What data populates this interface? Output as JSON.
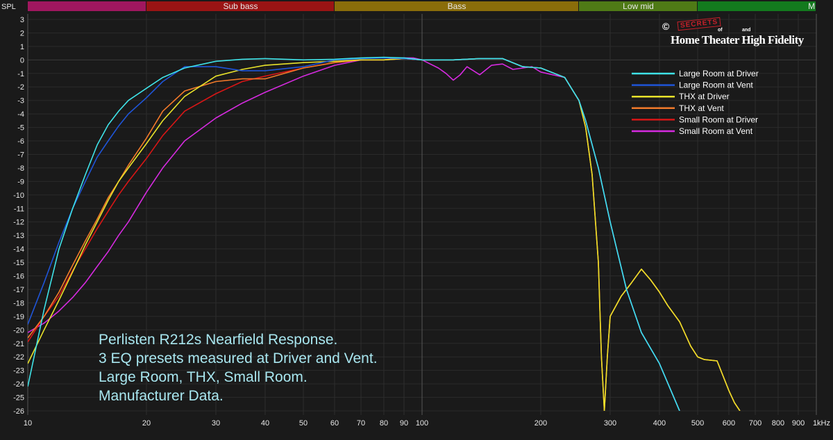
{
  "chart_data": {
    "type": "line",
    "ylabel": "SPL",
    "xscale": "log",
    "xlim": [
      10,
      1000
    ],
    "ylim": [
      -26,
      3
    ],
    "y_ticks": [
      3,
      2,
      1,
      0,
      -1,
      -2,
      -3,
      -4,
      -5,
      -6,
      -7,
      -8,
      -9,
      -10,
      -11,
      -12,
      -13,
      -14,
      -15,
      -16,
      -17,
      -18,
      -19,
      -20,
      -21,
      -22,
      -23,
      -24,
      -25,
      -26
    ],
    "x_ticks": [
      {
        "value": 10,
        "label": "10"
      },
      {
        "value": 20,
        "label": "20"
      },
      {
        "value": 30,
        "label": "30"
      },
      {
        "value": 40,
        "label": "40"
      },
      {
        "value": 50,
        "label": "50"
      },
      {
        "value": 60,
        "label": "60"
      },
      {
        "value": 70,
        "label": "70"
      },
      {
        "value": 80,
        "label": "80"
      },
      {
        "value": 90,
        "label": "90"
      },
      {
        "value": 100,
        "label": "100"
      },
      {
        "value": 200,
        "label": "200"
      },
      {
        "value": 300,
        "label": "300"
      },
      {
        "value": 400,
        "label": "400"
      },
      {
        "value": 500,
        "label": "500"
      },
      {
        "value": 600,
        "label": "600"
      },
      {
        "value": 700,
        "label": "700"
      },
      {
        "value": 800,
        "label": "800"
      },
      {
        "value": 900,
        "label": "900"
      },
      {
        "value": 1000,
        "label": "1kHz"
      }
    ],
    "bands": [
      {
        "label": "",
        "from": 10,
        "to": 20,
        "color": "#a0175f"
      },
      {
        "label": "Sub bass",
        "from": 20,
        "to": 60,
        "color": "#9a1414"
      },
      {
        "label": "Bass",
        "from": 60,
        "to": 250,
        "color": "#8a6d0a"
      },
      {
        "label": "Low mid",
        "from": 250,
        "to": 500,
        "color": "#4f7a16"
      },
      {
        "label": "M",
        "from": 500,
        "to": 1000,
        "color": "#137a1e"
      }
    ],
    "legend_position": "top-right",
    "grid": true,
    "series": [
      {
        "name": "Large Room at Driver",
        "color": "#3fe3e8",
        "x": [
          10,
          11,
          12,
          13,
          14,
          15,
          16,
          17,
          18,
          20,
          22,
          25,
          30,
          35,
          40,
          50,
          60,
          70,
          80,
          90,
          100,
          120,
          140,
          160,
          180,
          200,
          230,
          250,
          260,
          280,
          300,
          330,
          360,
          400,
          450
        ],
        "y": [
          -24.2,
          -18.5,
          -14,
          -11,
          -8.5,
          -6.3,
          -4.8,
          -3.8,
          -3,
          -2.1,
          -1.3,
          -0.6,
          -0.1,
          0.05,
          0.1,
          0,
          0.05,
          0.15,
          0.2,
          0.15,
          0,
          0,
          0.1,
          0.1,
          -0.5,
          -0.6,
          -1.3,
          -3,
          -4.5,
          -8,
          -12,
          -17,
          -20.2,
          -22.5,
          -26
        ]
      },
      {
        "name": "Large Room at Vent",
        "color": "#1f55d8",
        "x": [
          10,
          11,
          12,
          13,
          14,
          15,
          16,
          17,
          18,
          20,
          22,
          25,
          30,
          35,
          40,
          50,
          60,
          70,
          80,
          90,
          100,
          120,
          140,
          160,
          180,
          200,
          230,
          250,
          260,
          280,
          300,
          330,
          360,
          400,
          450
        ],
        "y": [
          -19.6,
          -16.5,
          -13.5,
          -11,
          -9,
          -7.2,
          -6,
          -4.9,
          -4,
          -2.8,
          -1.6,
          -0.5,
          -0.5,
          -0.8,
          -0.8,
          -0.5,
          0,
          0.1,
          0.15,
          0.1,
          0,
          0,
          0.1,
          0.1,
          -0.5,
          -0.6,
          -1.3,
          -3,
          -4.5,
          -8,
          -12,
          -17,
          -20.2,
          -22.5,
          -26
        ]
      },
      {
        "name": "THX at Driver",
        "color": "#e8e22a",
        "x": [
          10,
          11,
          12,
          13,
          14,
          15,
          16,
          17,
          18,
          20,
          22,
          25,
          30,
          35,
          40,
          50,
          60,
          70,
          80,
          90,
          100,
          120,
          140,
          160,
          180,
          200,
          230,
          250,
          260,
          270,
          280,
          285,
          290,
          295,
          300,
          320,
          340,
          360,
          380,
          400,
          420,
          450,
          480,
          500,
          520,
          560,
          600,
          620,
          640
        ],
        "y": [
          -22.5,
          -20,
          -17.8,
          -15.7,
          -13.7,
          -12,
          -10.4,
          -9,
          -8,
          -6.2,
          -4.5,
          -2.7,
          -1.2,
          -0.7,
          -0.4,
          -0.2,
          -0.1,
          0,
          0,
          0.1,
          0,
          0,
          0.1,
          0.1,
          -0.5,
          -0.6,
          -1.3,
          -3,
          -5,
          -8.5,
          -15,
          -22,
          -26,
          -22,
          -19,
          -17.5,
          -16.5,
          -15.5,
          -16.3,
          -17.2,
          -18.2,
          -19.4,
          -21.2,
          -22,
          -22.2,
          -22.3,
          -24.5,
          -25.4,
          -26
        ]
      },
      {
        "name": "THX at Vent",
        "color": "#f27a2a",
        "x": [
          10,
          11,
          12,
          13,
          14,
          15,
          16,
          17,
          18,
          20,
          22,
          25,
          30,
          35,
          40,
          50,
          60,
          70,
          80,
          90,
          100,
          120,
          140,
          160,
          180,
          200,
          230,
          250,
          260,
          270,
          280,
          285,
          290,
          295,
          300,
          320,
          340,
          360,
          380,
          400,
          420,
          450,
          480,
          500,
          520,
          560,
          600,
          620,
          640
        ],
        "y": [
          -20.6,
          -19,
          -17.2,
          -15.2,
          -13.4,
          -11.8,
          -10.2,
          -9,
          -7.8,
          -5.8,
          -3.8,
          -2.3,
          -1.6,
          -1.4,
          -1.4,
          -0.6,
          -0.2,
          0,
          0,
          0.1,
          0,
          0,
          0.1,
          0.1,
          -0.5,
          -0.6,
          -1.3,
          -3,
          -5,
          -8.5,
          -15,
          -22,
          -26,
          -22,
          -19,
          -17.5,
          -16.5,
          -15.5,
          -16.3,
          -17.2,
          -18.2,
          -19.4,
          -21.2,
          -22,
          -22.2,
          -22.3,
          -24.5,
          -25.4,
          -26
        ]
      },
      {
        "name": "Small Room at Driver",
        "color": "#d81616",
        "x": [
          10,
          11,
          12,
          13,
          14,
          15,
          16,
          17,
          18,
          20,
          22,
          25,
          30,
          35,
          40,
          50,
          60,
          70,
          80,
          90,
          100,
          120,
          140,
          160,
          180,
          200,
          230,
          250,
          260,
          270,
          280,
          285,
          290,
          295,
          300,
          320,
          340,
          360,
          380,
          400,
          420,
          450,
          480,
          500,
          520,
          560,
          600,
          620,
          640
        ],
        "y": [
          -20.9,
          -19,
          -17.5,
          -15.6,
          -14,
          -12.5,
          -11.2,
          -10,
          -9,
          -7.3,
          -5.6,
          -3.8,
          -2.5,
          -1.6,
          -1.2,
          -0.6,
          -0.2,
          0,
          0,
          0.1,
          0,
          0,
          0.1,
          0.1,
          -0.5,
          -0.6,
          -1.3,
          -3,
          -5,
          -8.5,
          -15,
          -22,
          -26,
          -22,
          -19,
          -17.5,
          -16.5,
          -15.5,
          -16.3,
          -17.2,
          -18.2,
          -19.4,
          -21.2,
          -22,
          -22.2,
          -22.3,
          -24.5,
          -25.4,
          -26
        ]
      },
      {
        "name": "Small Room at Vent",
        "color": "#d62ae0",
        "x": [
          10,
          11,
          12,
          13,
          14,
          15,
          16,
          17,
          18,
          20,
          22,
          25,
          30,
          35,
          40,
          50,
          60,
          70,
          80,
          90,
          95,
          100,
          110,
          115,
          120,
          125,
          130,
          135,
          140,
          150,
          160,
          170,
          180,
          190,
          200,
          230,
          250,
          260,
          280,
          300,
          330,
          360,
          400,
          450
        ],
        "y": [
          -20.2,
          -19.5,
          -18.6,
          -17.6,
          -16.5,
          -15.3,
          -14.2,
          -13,
          -12,
          -9.8,
          -8,
          -6,
          -4.3,
          -3.2,
          -2.4,
          -1.2,
          -0.4,
          0,
          0,
          0.15,
          0.15,
          0,
          -0.6,
          -1,
          -1.5,
          -1.1,
          -0.5,
          -0.8,
          -1.1,
          -0.4,
          -0.3,
          -0.7,
          -0.6,
          -0.5,
          -0.9,
          -1.3,
          -3,
          -4.5,
          -8,
          -12,
          -17,
          -20.2,
          -22.5,
          -26
        ]
      }
    ],
    "annotations": [
      "Perlisten R212s Nearfield Response.",
      "3 EQ presets measured at Driver and Vent.",
      "Large Room, THX, Small Room.",
      "Manufacturer Data."
    ]
  },
  "logo": {
    "copyright": "©",
    "stamp": "SECRETS",
    "of": "of",
    "and": "and",
    "name": "Home Theater High Fidelity"
  }
}
